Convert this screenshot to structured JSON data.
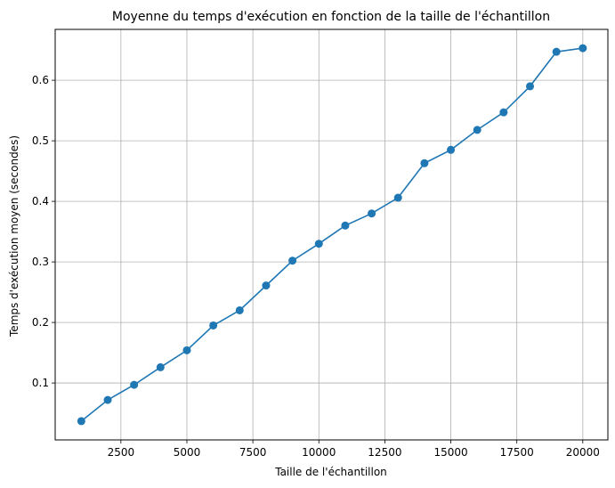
{
  "chart_data": {
    "type": "line",
    "title": "Moyenne du temps d'exécution en fonction de la taille de l'échantillon",
    "xlabel": "Taille de l'échantillon",
    "ylabel": "Temps d'exécution moyen (secondes)",
    "xlim": [
      10,
      20950
    ],
    "ylim": [
      0.006,
      0.684
    ],
    "xticks": [
      2500,
      5000,
      7500,
      10000,
      12500,
      15000,
      17500,
      20000
    ],
    "yticks": [
      0.1,
      0.2,
      0.3,
      0.4,
      0.5,
      0.6
    ],
    "xtick_labels": [
      "2500",
      "5000",
      "7500",
      "10000",
      "12500",
      "15000",
      "17500",
      "20000"
    ],
    "ytick_labels": [
      "0.1",
      "0.2",
      "0.3",
      "0.4",
      "0.5",
      "0.6"
    ],
    "grid": true,
    "marker": "circle",
    "line_color": "#1f77b4",
    "series": [
      {
        "x": [
          1000,
          2000,
          3000,
          4000,
          5000,
          6000,
          7000,
          8000,
          9000,
          10000,
          11000,
          12000,
          13000,
          14000,
          15000,
          16000,
          17000,
          18000,
          19000,
          20000
        ],
        "values": [
          0.037,
          0.072,
          0.097,
          0.126,
          0.154,
          0.195,
          0.22,
          0.261,
          0.302,
          0.33,
          0.36,
          0.38,
          0.406,
          0.463,
          0.485,
          0.518,
          0.547,
          0.59,
          0.647,
          0.653
        ]
      }
    ]
  }
}
